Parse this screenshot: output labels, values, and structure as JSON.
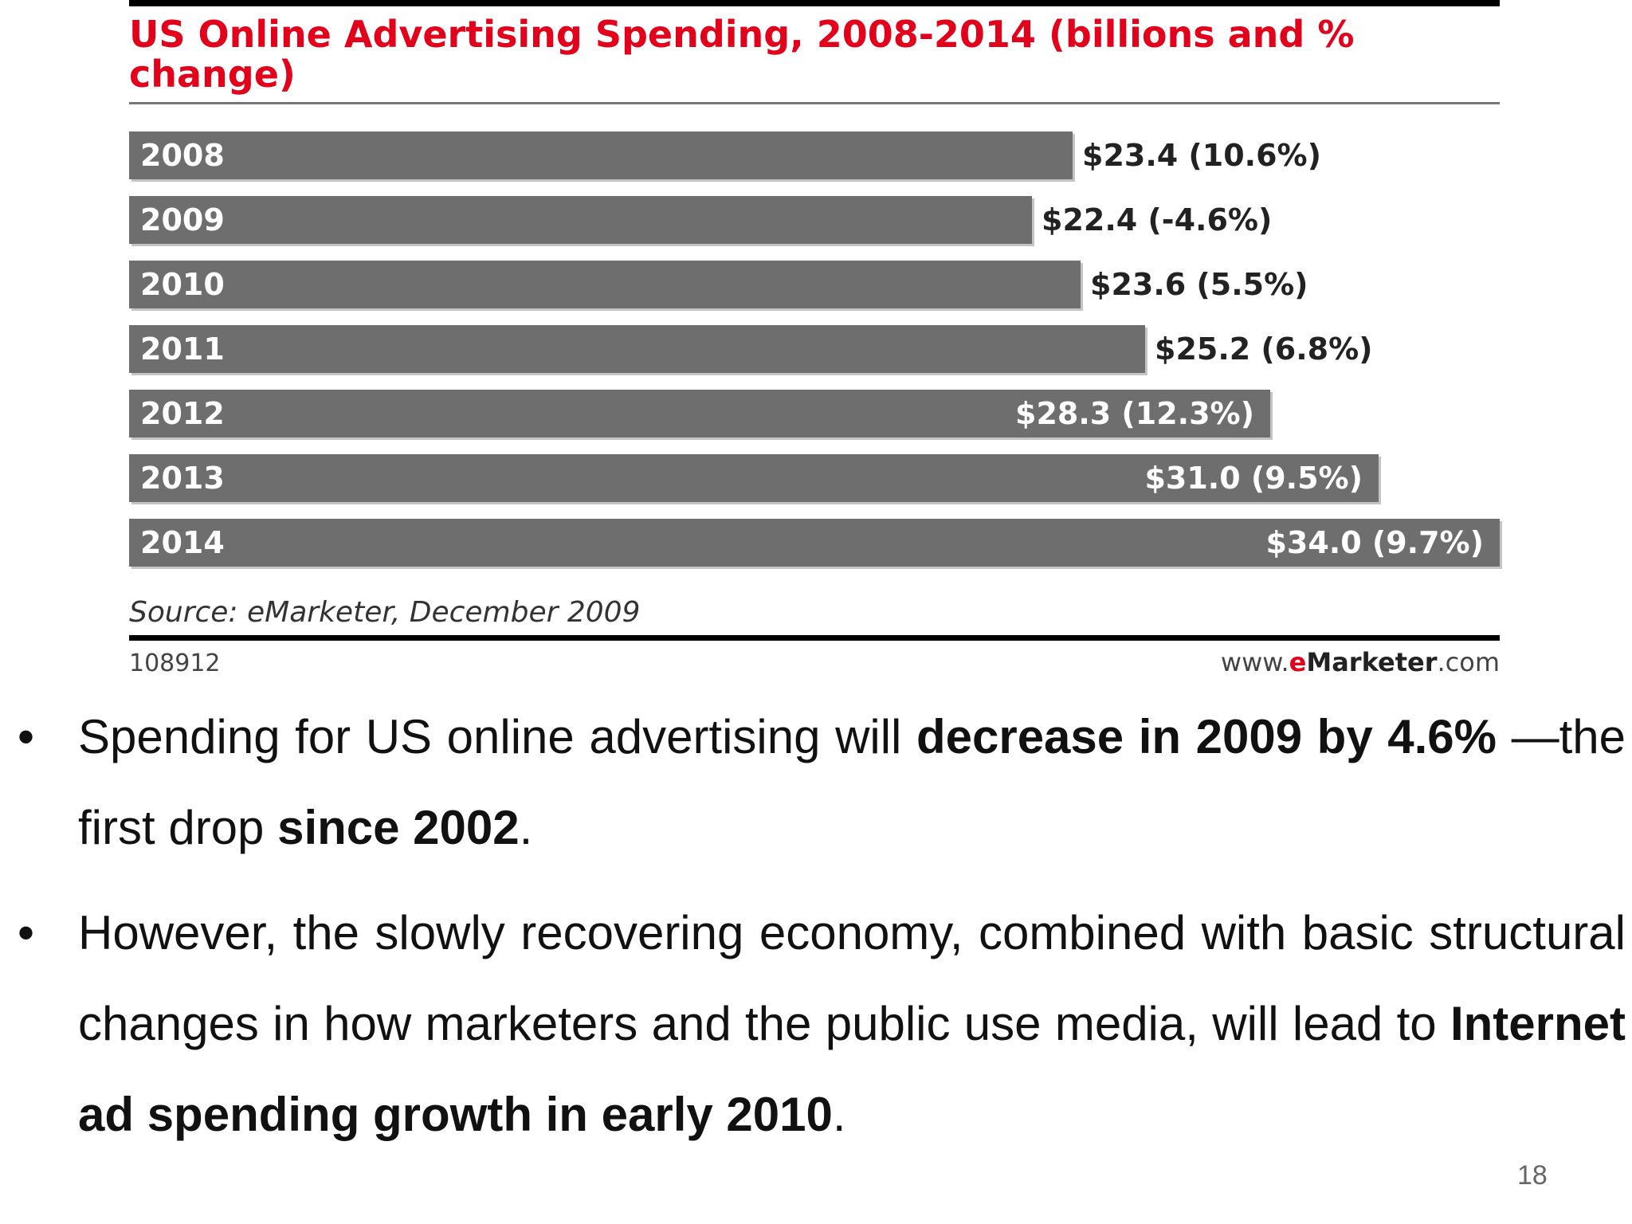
{
  "chart_data": {
    "type": "bar",
    "orientation": "horizontal",
    "title": "US Online Advertising Spending, 2008-2014 (billions and % change)",
    "categories": [
      "2008",
      "2009",
      "2010",
      "2011",
      "2012",
      "2013",
      "2014"
    ],
    "values": [
      23.4,
      22.4,
      23.6,
      25.2,
      28.3,
      31.0,
      34.0
    ],
    "pct_change": [
      10.6,
      -4.6,
      5.5,
      6.8,
      12.3,
      9.5,
      9.7
    ],
    "data_labels": [
      "$23.4 (10.6%)",
      "$22.4 (-4.6%)",
      "$23.6 (5.5%)",
      "$25.2 (6.8%)",
      "$28.3 (12.3%)",
      "$31.0 (9.5%)",
      "$34.0 (9.7%)"
    ],
    "xlim": [
      0,
      34.0
    ],
    "grid": false,
    "bar_color": "#6e6e6e",
    "title_color": "#e3001b",
    "source": "Source: eMarketer, December 2009",
    "chart_id": "108912",
    "site": {
      "prefix": "www.",
      "e": "e",
      "brand": "Marketer",
      "suffix": ".com"
    }
  },
  "bullets": [
    {
      "parts": [
        {
          "text": "Spending for US online advertising will ",
          "bold": false
        },
        {
          "text": "decrease in 2009 by 4.6%",
          "bold": true
        },
        {
          "text": " —the first drop ",
          "bold": false
        },
        {
          "text": "since 2002",
          "bold": true
        },
        {
          "text": ".",
          "bold": false
        }
      ]
    },
    {
      "parts": [
        {
          "text": "However, the slowly recovering economy, combined with basic structural changes in how marketers and the public use media, will lead to ",
          "bold": false
        },
        {
          "text": "Internet ad spending growth in early 2010",
          "bold": true
        },
        {
          "text": ".",
          "bold": false
        }
      ]
    }
  ],
  "bullet_symbol": "•",
  "page_number": "18"
}
